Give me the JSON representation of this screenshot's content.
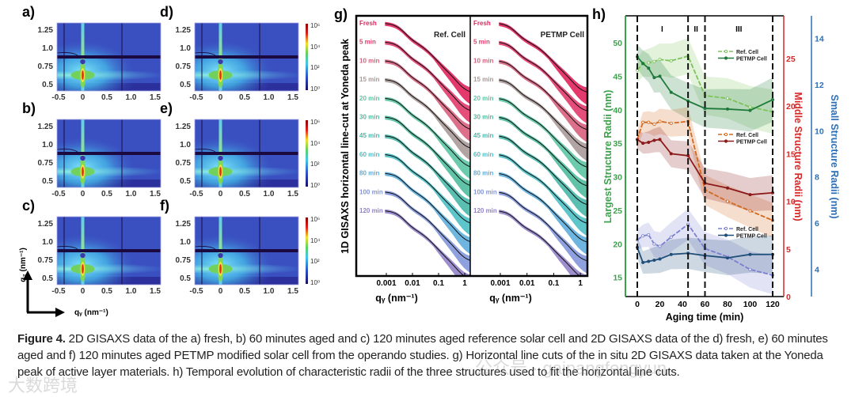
{
  "heatmaps": {
    "panel_labels": [
      "a)",
      "b)",
      "c)",
      "d)",
      "e)",
      "f)"
    ],
    "x_ticks": [
      "-0.5",
      "0",
      "0.5",
      "1.0",
      "1.5"
    ],
    "y_ticks": [
      "1.25",
      "1.0",
      "0.75",
      "0.5"
    ],
    "colorbar_ticks": [
      "10⁶",
      "10⁴",
      "10²",
      "10⁰"
    ],
    "qz_label": "q₂ (nm⁻¹)",
    "qy_label": "qᵧ (nm⁻¹)"
  },
  "chart_data": [
    {
      "type": "line",
      "panel_label": "g)",
      "ylabel": "1D GISAXS horizontal line-cut at Yoneda peak",
      "xlabel": "qᵧ (nm⁻¹)",
      "xscale": "log",
      "x_ticks": [
        "0.001",
        "0.01",
        "0.1",
        "1"
      ],
      "subplots": [
        "Ref. Cell",
        "PETMP Cell"
      ],
      "series": [
        "Fresh",
        "5 min",
        "10 min",
        "15 min",
        "20 min",
        "30 min",
        "45 min",
        "60 min",
        "80 min",
        "100 min",
        "120 min"
      ],
      "series_colors": [
        "#e0245c",
        "#e23a6c",
        "#d8607e",
        "#a89a98",
        "#5cc4a4",
        "#4fbc9e",
        "#48b8a8",
        "#4cc0c4",
        "#5eaedc",
        "#8296da",
        "#9282c8"
      ]
    },
    {
      "type": "line",
      "panel_label": "h)",
      "xlabel": "Aging time (min)",
      "x": [
        0,
        5,
        10,
        15,
        20,
        30,
        45,
        60,
        80,
        100,
        120
      ],
      "x_ticks": [
        "0",
        "20",
        "40",
        "60",
        "80",
        "100",
        "120"
      ],
      "xlim": [
        -8,
        128
      ],
      "regions": [
        "I",
        "II",
        "III"
      ],
      "region_boundaries": [
        0,
        45,
        60,
        120
      ],
      "axes": {
        "left": {
          "label": "Largest Structure Radii (nm)",
          "ticks": [
            "50",
            "45",
            "40",
            "35",
            "30",
            "25",
            "20",
            "15"
          ],
          "color": "#3aa34a"
        },
        "right1": {
          "label": "Middle Structure Radii (nm)",
          "ticks": [
            "25",
            "20",
            "15",
            "10",
            "5",
            "0"
          ],
          "color": "#d42a2a"
        },
        "right2": {
          "label": "Small Structure Radii (nm)",
          "ticks": [
            "14",
            "12",
            "10",
            "8",
            "6",
            "4"
          ],
          "color": "#2f6fb5"
        }
      },
      "series": [
        {
          "name": "Ref. Cell",
          "axis": "left",
          "color": "#7cc35a",
          "values": [
            45.9,
            46.9,
            47.0,
            47.2,
            47.5,
            47.3,
            48.0,
            42.1,
            41.7,
            40.4,
            39.7
          ]
        },
        {
          "name": "PETMP Cell",
          "axis": "left",
          "color": "#1e7a3a",
          "values": [
            47.9,
            46.9,
            46.2,
            44.8,
            45.0,
            42.6,
            41.3,
            40.2,
            40.1,
            39.9,
            41.5
          ]
        },
        {
          "name": "Ref. Cell",
          "axis": "right1",
          "color": "#d2691e",
          "values": [
            16.5,
            18.3,
            18.3,
            18.1,
            18.4,
            18.2,
            18.4,
            11.2,
            10.0,
            9.0,
            8.0
          ]
        },
        {
          "name": "PETMP Cell",
          "axis": "right1",
          "color": "#8b1a1a",
          "values": [
            16.5,
            16.1,
            16.2,
            16.4,
            16.5,
            15.0,
            14.8,
            11.9,
            11.4,
            10.7,
            10.9
          ]
        },
        {
          "name": "Ref. Cell",
          "axis": "right2",
          "color": "#7a7fd0",
          "values": [
            5.28,
            5.45,
            5.5,
            5.1,
            5.0,
            5.4,
            5.95,
            4.9,
            4.55,
            4.0,
            3.75
          ]
        },
        {
          "name": "PETMP Cell",
          "axis": "right2",
          "color": "#1f4e79",
          "values": [
            4.95,
            4.3,
            4.35,
            4.4,
            4.45,
            4.65,
            4.7,
            4.6,
            4.5,
            4.65,
            4.65
          ]
        }
      ]
    }
  ],
  "caption": {
    "label": "Figure 4.",
    "text": " 2D GISAXS data of the a) fresh, b) 60 minutes aged and c) 120 minutes aged reference solar cell and 2D GISAXS data of the d) fresh, e) 60 minutes aged and f) 120 minutes aged PETMP modified solar cell from the operando studies. g) Horizontal line cuts of the in situ 2D GISAXS data taken at the Yoneda peak of active layer materials. h) Temporal evolution of characteristic radii of the three structures used to fit the horizontal line cuts."
  },
  "watermarks": [
    "公众号 · gaipangfengyun",
    "大数跨境"
  ]
}
